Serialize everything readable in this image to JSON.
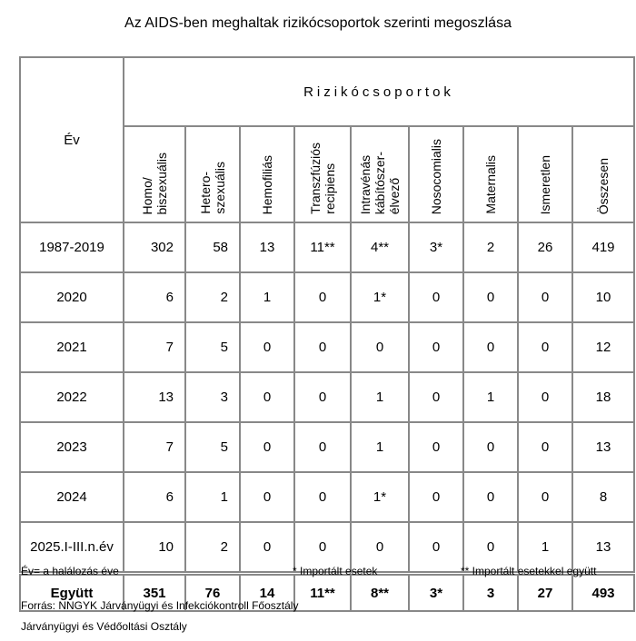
{
  "title": "Az AIDS-ben meghaltak rizikócsoportok szerinti megoszlása",
  "table": {
    "year_header": "Év",
    "group_header": "Rizikócsoportok",
    "columns": [
      [
        "Homo/",
        "biszexuális"
      ],
      [
        "Hetero-",
        "szexuális"
      ],
      [
        "Hemofiliás"
      ],
      [
        "Transzfúziós",
        "recipiens"
      ],
      [
        "Intravénás",
        "kábítószer-",
        "élvező"
      ],
      [
        "Nosocomialis"
      ],
      [
        "Maternalis"
      ],
      [
        "Ismeretlen"
      ],
      [
        "Összesen"
      ]
    ],
    "rows": [
      {
        "year": "1987-2019",
        "values": [
          "302",
          "58",
          "13",
          "11**",
          "4**",
          "3*",
          "2",
          "26",
          "419"
        ]
      },
      {
        "year": "2020",
        "values": [
          "6",
          "2",
          "1",
          "0",
          "1*",
          "0",
          "0",
          "0",
          "10"
        ]
      },
      {
        "year": "2021",
        "values": [
          "7",
          "5",
          "0",
          "0",
          "0",
          "0",
          "0",
          "0",
          "12"
        ]
      },
      {
        "year": "2022",
        "values": [
          "13",
          "3",
          "0",
          "0",
          "1",
          "0",
          "1",
          "0",
          "18"
        ]
      },
      {
        "year": "2023",
        "values": [
          "7",
          "5",
          "0",
          "0",
          "1",
          "0",
          "0",
          "0",
          "13"
        ]
      },
      {
        "year": "2024",
        "values": [
          "6",
          "1",
          "0",
          "0",
          "1*",
          "0",
          "0",
          "0",
          "8"
        ]
      },
      {
        "year": "2025.I-III.n.év",
        "values": [
          "10",
          "2",
          "0",
          "0",
          "0",
          "0",
          "0",
          "1",
          "13"
        ]
      }
    ],
    "total": {
      "year": "Együtt",
      "values": [
        "351",
        "76",
        "14",
        "11**",
        "8**",
        "3*",
        "3",
        "27",
        "493"
      ]
    }
  },
  "notes": {
    "ev": "Év= a halálozás éve",
    "star": "* Importált esetek",
    "dstar": "** Importált esetekkel együtt"
  },
  "source": [
    "Forrás: NNGYK Járványügyi és Infekciókontroll Főosztály",
    "Járványügyi és Védőoltási Osztály"
  ]
}
